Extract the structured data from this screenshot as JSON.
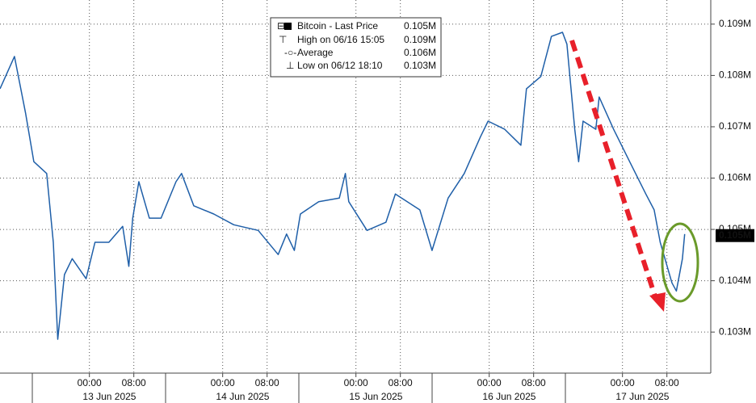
{
  "chart_data": {
    "type": "line",
    "series": [
      {
        "name": "Bitcoin",
        "color": "#1f5fa8",
        "x": [
          7.9,
          10.5,
          12.5,
          14.0,
          16.3,
          17.5,
          18.3,
          19.5,
          20.9,
          23.4,
          25.0,
          27.5,
          30.0,
          31.1,
          31.8,
          32.9,
          34.8,
          36.9,
          39.6,
          40.6,
          42.8,
          46.4,
          50.0,
          54.4,
          58.0,
          59.5,
          60.9,
          62.0,
          65.3,
          69.0,
          70.1,
          70.7,
          74.0,
          77.4,
          79.1,
          83.5,
          85.7,
          88.6,
          91.5,
          94.4,
          95.8,
          98.8,
          101.7,
          102.7,
          105.3,
          107.2,
          109.2,
          110.0,
          111.4,
          112.1,
          112.9,
          115.2,
          115.8,
          118.4,
          121.3,
          124.2,
          125.7,
          126.8,
          128.9,
          129.7,
          130.8,
          131.2
        ],
        "values": [
          0.10774,
          0.10837,
          0.10727,
          0.10632,
          0.10609,
          0.10475,
          0.10286,
          0.10412,
          0.10443,
          0.10404,
          0.10475,
          0.10475,
          0.10506,
          0.10428,
          0.10522,
          0.10593,
          0.10522,
          0.10522,
          0.10593,
          0.10609,
          0.10546,
          0.1053,
          0.10509,
          0.10498,
          0.10451,
          0.10491,
          0.10459,
          0.1053,
          0.10554,
          0.10561,
          0.10609,
          0.10554,
          0.10498,
          0.10514,
          0.10569,
          0.10538,
          0.10459,
          0.10561,
          0.10609,
          0.1068,
          0.10711,
          0.10695,
          0.10664,
          0.10774,
          0.10798,
          0.10876,
          0.10884,
          0.10861,
          0.10695,
          0.10632,
          0.10711,
          0.10695,
          0.10758,
          0.10695,
          0.10632,
          0.10569,
          0.10538,
          0.10475,
          0.10396,
          0.1038,
          0.10443,
          0.10491
        ]
      }
    ],
    "xlim": [
      7.9,
      135.9
    ],
    "ylim": [
      0.1022,
      0.10947
    ],
    "yticks": [
      {
        "value": 0.103,
        "label": "0.103M"
      },
      {
        "value": 0.104,
        "label": "0.104M"
      },
      {
        "value": 0.105,
        "label": "0.105M"
      },
      {
        "value": 0.106,
        "label": "0.106M"
      },
      {
        "value": 0.107,
        "label": "0.107M"
      },
      {
        "value": 0.108,
        "label": "0.108M"
      },
      {
        "value": 0.109,
        "label": "0.109M"
      }
    ],
    "xticks": [
      {
        "value": 24,
        "label": "00:00"
      },
      {
        "value": 32,
        "label": "08:00"
      },
      {
        "value": 48,
        "label": "00:00"
      },
      {
        "value": 56,
        "label": "08:00"
      },
      {
        "value": 72,
        "label": "00:00"
      },
      {
        "value": 80,
        "label": "08:00"
      },
      {
        "value": 96,
        "label": "00:00"
      },
      {
        "value": 104,
        "label": "08:00"
      },
      {
        "value": 120,
        "label": "00:00"
      },
      {
        "value": 128,
        "label": "08:00"
      }
    ],
    "date_labels": [
      {
        "value": 27.6,
        "label": "13 Jun 2025"
      },
      {
        "value": 51.6,
        "label": "14 Jun 2025"
      },
      {
        "value": 75.6,
        "label": "15 Jun 2025"
      },
      {
        "value": 99.6,
        "label": "16 Jun 2025"
      },
      {
        "value": 123.6,
        "label": "17 Jun 2025"
      }
    ],
    "last_price": {
      "value": 0.10488,
      "label": "0.105M"
    },
    "grid": true,
    "legend": [
      {
        "label": "Bitcoin - Last Price",
        "value": "0.105M"
      },
      {
        "label": "High on 06/16 15:05",
        "value": "0.109M"
      },
      {
        "label": "Average",
        "value": "0.106M"
      },
      {
        "label": "Low on 06/12 18:10",
        "value": "0.103M"
      }
    ]
  }
}
